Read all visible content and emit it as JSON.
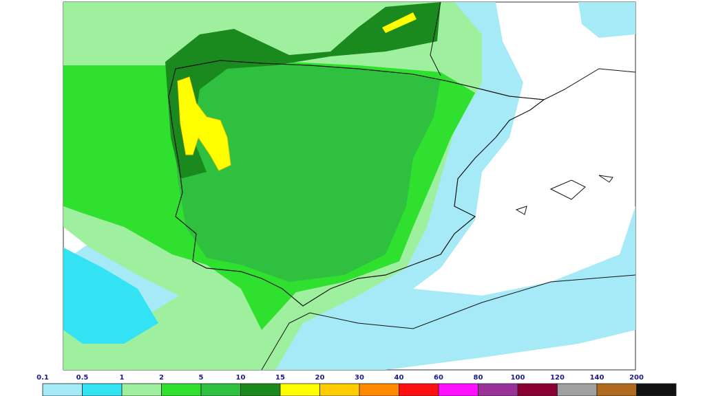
{
  "legend": {
    "labels": [
      "0.1",
      "0.5",
      "1",
      "2",
      "5",
      "10",
      "15",
      "20",
      "30",
      "40",
      "60",
      "80",
      "100",
      "120",
      "140",
      "200"
    ],
    "colors": [
      "#a6eaf7",
      "#33e3f3",
      "#9ef09e",
      "#2fe02f",
      "#2fc040",
      "#1a8a1e",
      "#ffff00",
      "#ffcc00",
      "#ff8a00",
      "#ff1010",
      "#ff10ff",
      "#993399",
      "#8a0033",
      "#a0a0a0",
      "#b06a20",
      "#111111"
    ]
  }
}
